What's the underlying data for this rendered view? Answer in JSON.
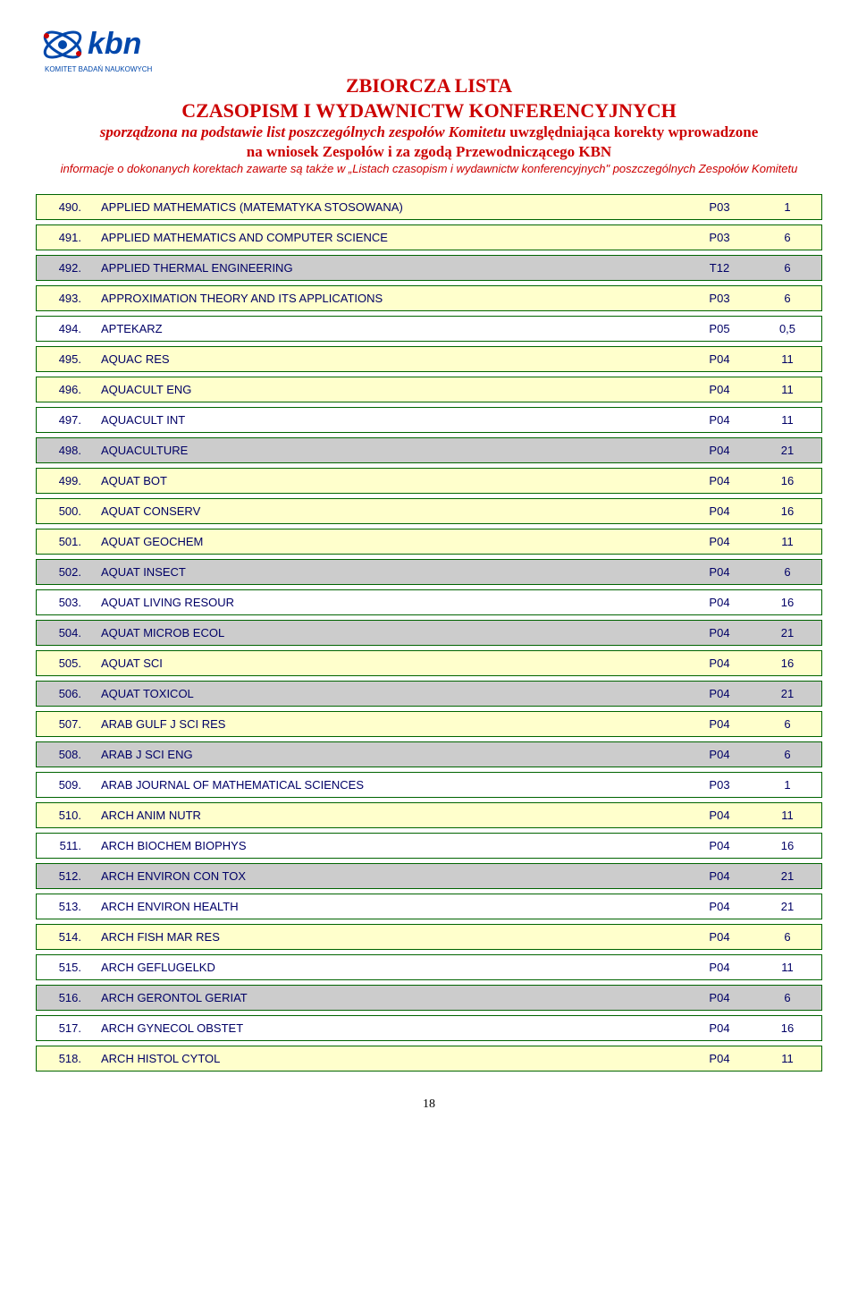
{
  "header": {
    "logo_text_main": "kbn",
    "logo_text_sub": "KOMITET BADAŃ NAUKOWYCH",
    "title_line1": "ZBIORCZA LISTA",
    "title_line2": "CZASOPISM I WYDAWNICTW KONFERENCYJNYCH",
    "subtitle_part1": "sporządzona na podstawie list poszczególnych zespołów Komitetu ",
    "subtitle_part2": "uwzględniająca korekty wprowadzone",
    "subtitle_line2": "na wniosek Zespołów i za zgodą Przewodniczącego KBN",
    "info": "informacje o dokonanych korektach zawarte są także w „Listach czasopism i wydawnictw konferencyjnych\" poszczególnych Zespołów Komitetu"
  },
  "colors": {
    "border": "#006400",
    "text": "#000066",
    "title": "#cc0000",
    "row_yellow": "#ffffcc",
    "row_grey": "#cccccc",
    "row_white": "#ffffff",
    "logo_blue": "#0047ab"
  },
  "rows": [
    {
      "n": "490.",
      "title": "APPLIED MATHEMATICS (MATEMATYKA STOSOWANA)",
      "c": "P03",
      "v": "1",
      "cls": "row-yellow"
    },
    {
      "n": "491.",
      "title": "APPLIED MATHEMATICS AND COMPUTER SCIENCE",
      "c": "P03",
      "v": "6",
      "cls": "row-yellow"
    },
    {
      "n": "492.",
      "title": "APPLIED THERMAL ENGINEERING",
      "c": "T12",
      "v": "6",
      "cls": "row-grey"
    },
    {
      "n": "493.",
      "title": "APPROXIMATION THEORY AND ITS APPLICATIONS",
      "c": "P03",
      "v": "6",
      "cls": "row-yellow"
    },
    {
      "n": "494.",
      "title": "APTEKARZ",
      "c": "P05",
      "v": "0,5",
      "cls": "row-white"
    },
    {
      "n": "495.",
      "title": "AQUAC RES",
      "c": "P04",
      "v": "11",
      "cls": "row-yellow"
    },
    {
      "n": "496.",
      "title": "AQUACULT ENG",
      "c": "P04",
      "v": "11",
      "cls": "row-yellow"
    },
    {
      "n": "497.",
      "title": "AQUACULT INT",
      "c": "P04",
      "v": "11",
      "cls": "row-white"
    },
    {
      "n": "498.",
      "title": "AQUACULTURE",
      "c": "P04",
      "v": "21",
      "cls": "row-grey"
    },
    {
      "n": "499.",
      "title": "AQUAT BOT",
      "c": "P04",
      "v": "16",
      "cls": "row-yellow"
    },
    {
      "n": "500.",
      "title": "AQUAT CONSERV",
      "c": "P04",
      "v": "16",
      "cls": "row-yellow"
    },
    {
      "n": "501.",
      "title": "AQUAT GEOCHEM",
      "c": "P04",
      "v": "11",
      "cls": "row-yellow"
    },
    {
      "n": "502.",
      "title": "AQUAT INSECT",
      "c": "P04",
      "v": "6",
      "cls": "row-grey"
    },
    {
      "n": "503.",
      "title": "AQUAT LIVING RESOUR",
      "c": "P04",
      "v": "16",
      "cls": "row-white"
    },
    {
      "n": "504.",
      "title": "AQUAT MICROB ECOL",
      "c": "P04",
      "v": "21",
      "cls": "row-grey"
    },
    {
      "n": "505.",
      "title": "AQUAT SCI",
      "c": "P04",
      "v": "16",
      "cls": "row-yellow"
    },
    {
      "n": "506.",
      "title": "AQUAT TOXICOL",
      "c": "P04",
      "v": "21",
      "cls": "row-grey"
    },
    {
      "n": "507.",
      "title": "ARAB GULF J SCI RES",
      "c": "P04",
      "v": "6",
      "cls": "row-yellow"
    },
    {
      "n": "508.",
      "title": "ARAB J SCI ENG",
      "c": "P04",
      "v": "6",
      "cls": "row-grey"
    },
    {
      "n": "509.",
      "title": "ARAB JOURNAL OF MATHEMATICAL SCIENCES",
      "c": "P03",
      "v": "1",
      "cls": "row-white"
    },
    {
      "n": "510.",
      "title": "ARCH ANIM NUTR",
      "c": "P04",
      "v": "11",
      "cls": "row-yellow"
    },
    {
      "n": "511.",
      "title": "ARCH BIOCHEM BIOPHYS",
      "c": "P04",
      "v": "16",
      "cls": "row-white"
    },
    {
      "n": "512.",
      "title": "ARCH ENVIRON CON TOX",
      "c": "P04",
      "v": "21",
      "cls": "row-grey"
    },
    {
      "n": "513.",
      "title": "ARCH ENVIRON HEALTH",
      "c": "P04",
      "v": "21",
      "cls": "row-white"
    },
    {
      "n": "514.",
      "title": "ARCH FISH MAR RES",
      "c": "P04",
      "v": "6",
      "cls": "row-yellow"
    },
    {
      "n": "515.",
      "title": "ARCH GEFLUGELKD",
      "c": "P04",
      "v": "11",
      "cls": "row-white"
    },
    {
      "n": "516.",
      "title": "ARCH GERONTOL GERIAT",
      "c": "P04",
      "v": "6",
      "cls": "row-grey"
    },
    {
      "n": "517.",
      "title": "ARCH GYNECOL OBSTET",
      "c": "P04",
      "v": "16",
      "cls": "row-white"
    },
    {
      "n": "518.",
      "title": "ARCH HISTOL CYTOL",
      "c": "P04",
      "v": "11",
      "cls": "row-yellow"
    }
  ],
  "page_number": "18"
}
